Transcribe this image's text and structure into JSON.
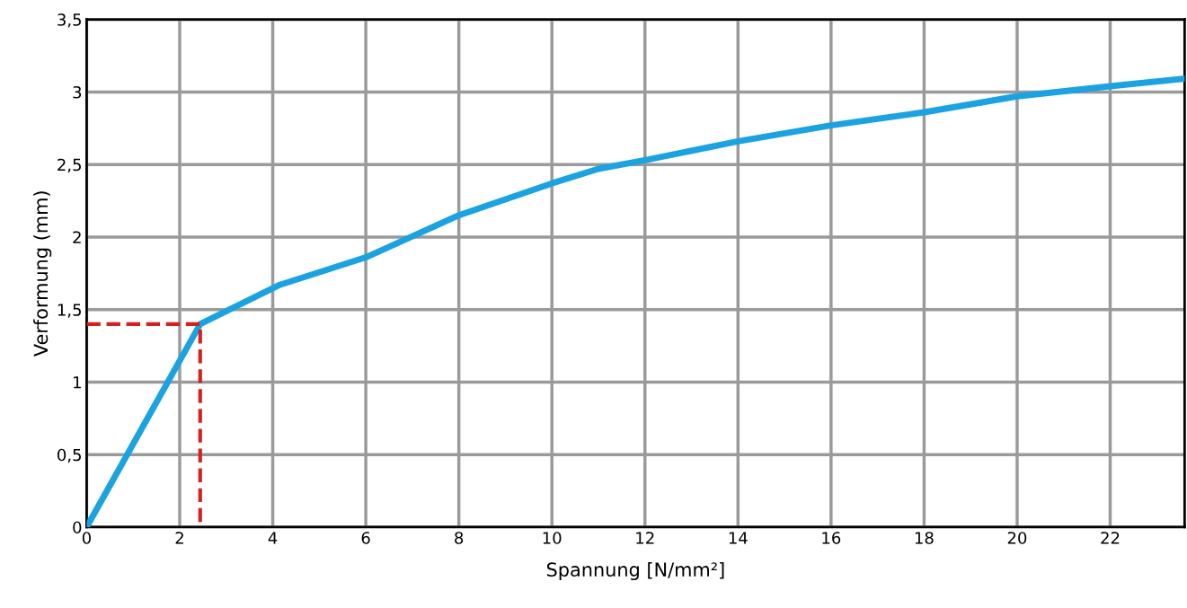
{
  "chart_data": {
    "type": "line",
    "xlabel": "Spannung [N/mm²]",
    "ylabel": "Verformung (mm)",
    "xlim": [
      0,
      23.6
    ],
    "ylim": [
      0,
      3.5
    ],
    "xticks": [
      0,
      2,
      4,
      6,
      8,
      10,
      12,
      14,
      16,
      18,
      20,
      22
    ],
    "yticks": [
      {
        "value": 0,
        "label": "0"
      },
      {
        "value": 0.5,
        "label": "0,5"
      },
      {
        "value": 1,
        "label": "1"
      },
      {
        "value": 1.5,
        "label": "1,5"
      },
      {
        "value": 2,
        "label": "2"
      },
      {
        "value": 2.5,
        "label": "2,5"
      },
      {
        "value": 3,
        "label": "3"
      },
      {
        "value": 3.5,
        "label": "3,5"
      }
    ],
    "grid": true,
    "marker": "none",
    "series": [
      {
        "color": "#1aa3e0",
        "line_style": "solid",
        "x": [
          0,
          2.44,
          4.15,
          6,
          8,
          10,
          11,
          12,
          14,
          16,
          18,
          20,
          22,
          23.55
        ],
        "values": [
          0,
          1.4,
          1.67,
          1.86,
          2.15,
          2.37,
          2.47,
          2.53,
          2.66,
          2.77,
          2.86,
          2.97,
          3.04,
          3.09
        ]
      },
      {
        "color": "#d42020",
        "line_style": "dashed",
        "x": [
          0,
          2.44,
          2.44
        ],
        "values": [
          1.4,
          1.4,
          0
        ]
      }
    ]
  }
}
